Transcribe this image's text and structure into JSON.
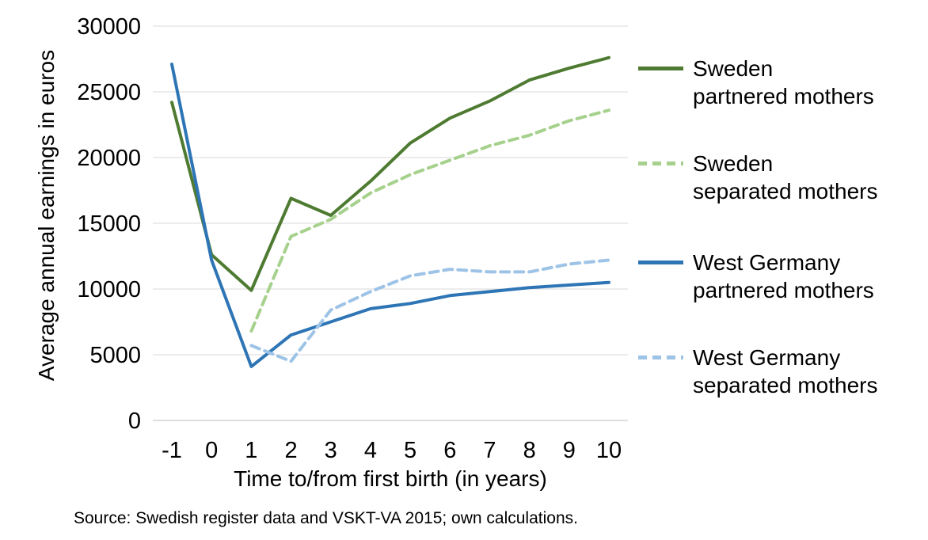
{
  "figure": {
    "source_note": "Source: Swedish register data and VSKT-VA 2015; own calculations."
  },
  "chart_data": {
    "type": "line",
    "title": "",
    "xlabel": "Time to/from first birth (in years)",
    "ylabel": "Average annual earnings in euros",
    "x": [
      -1,
      0,
      1,
      2,
      3,
      4,
      5,
      6,
      7,
      8,
      9,
      10
    ],
    "ylim": [
      0,
      30000
    ],
    "yticks": [
      0,
      5000,
      10000,
      15000,
      20000,
      25000,
      30000
    ],
    "grid": "horizontal-only",
    "gridline_color": "#d9d9d9",
    "baseline_color": "#bfbfbf",
    "legend_position": "right",
    "series": [
      {
        "name": "Sweden partnered mothers",
        "label_lines": [
          "Sweden",
          "partnered mothers"
        ],
        "color": "#4e7b31",
        "dash": "solid",
        "values": [
          24200,
          12600,
          9900,
          16900,
          15600,
          18200,
          21100,
          23000,
          24300,
          25900,
          26800,
          27600
        ]
      },
      {
        "name": "Sweden separated mothers",
        "label_lines": [
          "Sweden",
          "separated mothers"
        ],
        "color": "#a6d18c",
        "dash": "dashed",
        "values": [
          null,
          null,
          6800,
          14000,
          15300,
          17300,
          18700,
          19800,
          20900,
          21700,
          22800,
          23600
        ]
      },
      {
        "name": "West Germany partnered mothers",
        "label_lines": [
          "West Germany",
          "partnered mothers"
        ],
        "color": "#2e75b5",
        "dash": "solid",
        "values": [
          27100,
          12200,
          4100,
          6500,
          7500,
          8500,
          8900,
          9500,
          9800,
          10100,
          10300,
          10500
        ]
      },
      {
        "name": "West Germany separated mothers",
        "label_lines": [
          "West Germany",
          "separated mothers"
        ],
        "color": "#9dc3e6",
        "dash": "dashed",
        "values": [
          null,
          null,
          5700,
          4500,
          8400,
          9800,
          11000,
          11500,
          11300,
          11300,
          11900,
          12200
        ]
      }
    ]
  }
}
